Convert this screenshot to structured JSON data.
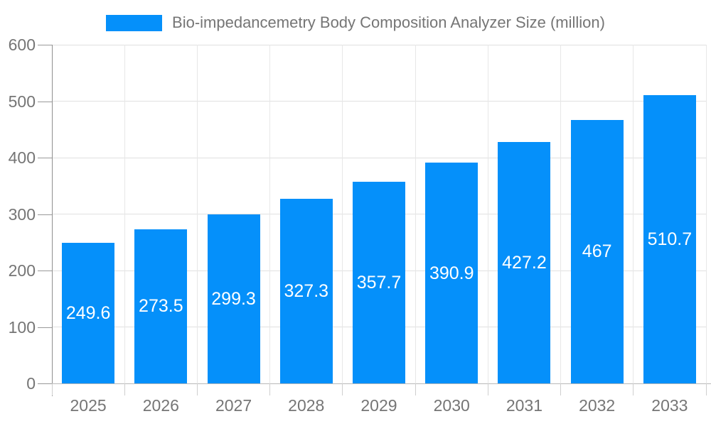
{
  "legend": {
    "label": "Bio-impedancemetry Body Composition Analyzer Size (million)"
  },
  "chart_data": {
    "type": "bar",
    "title": "Bio-impedancemetry Body Composition Analyzer Size (million)",
    "categories": [
      "2025",
      "2026",
      "2027",
      "2028",
      "2029",
      "2030",
      "2031",
      "2032",
      "2033"
    ],
    "series": [
      {
        "name": "Bio-impedancemetry Body Composition Analyzer Size (million)",
        "values": [
          249.6,
          273.5,
          299.3,
          327.3,
          357.7,
          390.9,
          427.2,
          467,
          510.7
        ],
        "value_labels": [
          "249.6",
          "273.5",
          "299.3",
          "327.3",
          "357.7",
          "390.9",
          "427.2",
          "467",
          "510.7"
        ]
      }
    ],
    "xlabel": "",
    "ylabel": "",
    "ylim": [
      0,
      600
    ],
    "yticks": [
      0,
      100,
      200,
      300,
      400,
      500,
      600
    ],
    "grid": true,
    "legend_position": "top",
    "value_label_position": "inside-center",
    "colors": {
      "bar": "#0590fa",
      "bar_label": "#ffffff",
      "axis_text": "#757575",
      "legend_text": "#757575",
      "grid_h": "#e0e0e0",
      "grid_v": "#e7e7e7",
      "axis_y_line": "#8f8f8f",
      "axis_x_line": "#b9b9b9",
      "y_tick": "#999999",
      "x_tick": "#cfcfcf",
      "background": "#ffffff"
    }
  }
}
